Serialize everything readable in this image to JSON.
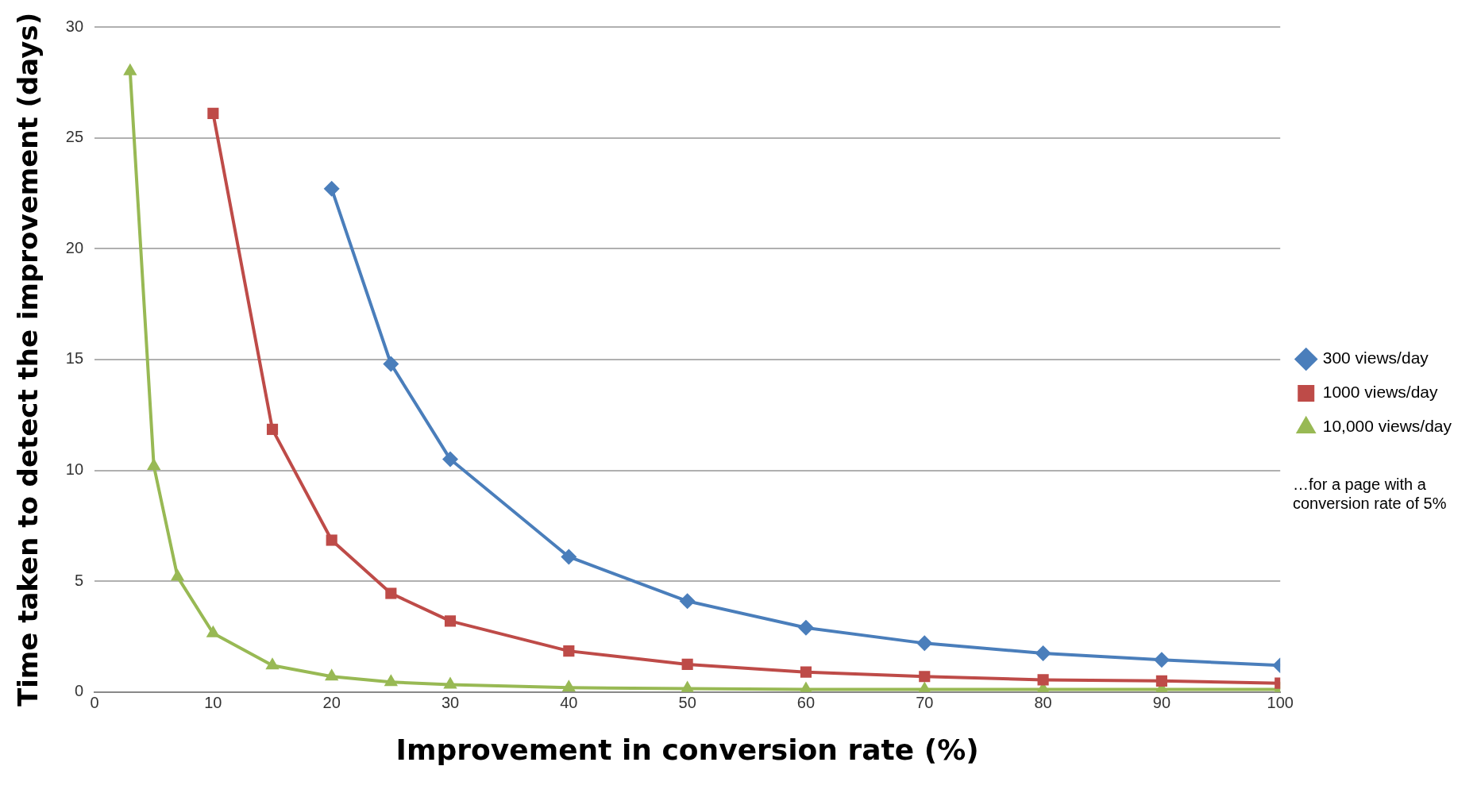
{
  "chart_data": {
    "type": "line",
    "xlabel": "Improvement in conversion rate (%)",
    "ylabel": "Time taken to detect the improvement (days)",
    "xlim": [
      0,
      100
    ],
    "xticks": [
      0,
      10,
      20,
      30,
      40,
      50,
      60,
      70,
      80,
      90,
      100
    ],
    "ylim": [
      0,
      30
    ],
    "yticks": [
      0,
      5,
      10,
      15,
      20,
      25,
      30
    ],
    "grid": "y",
    "legend": "right",
    "annotations": [
      "…for a page with a conversion rate of 5%"
    ],
    "series": [
      {
        "name": "300 views/day",
        "color": "#4a7ebb",
        "marker": "diamond",
        "x": [
          20,
          25,
          30,
          40,
          50,
          60,
          70,
          80,
          90,
          100
        ],
        "values": [
          22.7,
          14.8,
          10.5,
          6.1,
          4.1,
          2.9,
          2.2,
          1.75,
          1.45,
          1.2
        ]
      },
      {
        "name": "1000 views/day",
        "color": "#be4b48",
        "marker": "square",
        "x": [
          10,
          15,
          20,
          25,
          30,
          40,
          50,
          60,
          70,
          80,
          90,
          100
        ],
        "values": [
          26.1,
          11.85,
          6.85,
          4.45,
          3.2,
          1.85,
          1.25,
          0.9,
          0.7,
          0.55,
          0.5,
          0.4
        ]
      },
      {
        "name": "10,000 views/day",
        "color": "#98b954",
        "marker": "triangle",
        "x": [
          3,
          5,
          7,
          10,
          15,
          20,
          25,
          30,
          40,
          50,
          60,
          70,
          80,
          90,
          100
        ],
        "values": [
          28,
          10.2,
          5.2,
          2.65,
          1.2,
          0.7,
          0.45,
          0.33,
          0.2,
          0.15,
          0.12,
          0.12,
          0.12,
          0.12,
          0.12
        ]
      }
    ]
  }
}
